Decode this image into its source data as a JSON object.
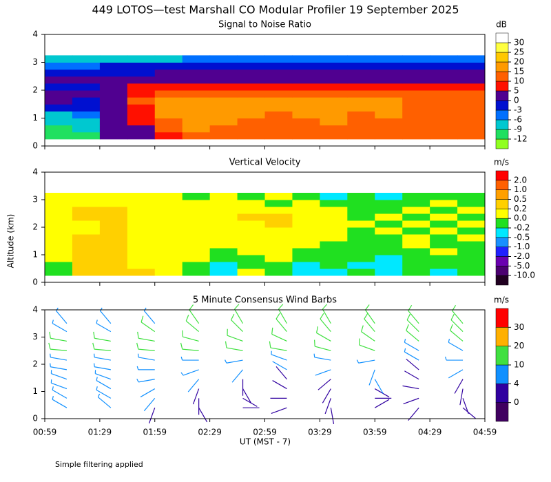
{
  "title": "449 LOTOS—test Marshall CO Modular Profiler 19 September 2025",
  "ylabel": "Altitude (km)",
  "xlabel": "UT  (MST - 7)",
  "footnote": "Simple filtering applied",
  "xticks": [
    "00:59",
    "01:29",
    "01:59",
    "02:29",
    "02:59",
    "03:29",
    "03:59",
    "04:29",
    "04:59"
  ],
  "chart_data": [
    {
      "type": "heatmap",
      "title": "Signal to Noise Ratio",
      "unit": "dB",
      "ylim": [
        0,
        4
      ],
      "yticks": [
        0,
        1,
        2,
        3,
        4
      ],
      "y": [
        0.375,
        0.625,
        0.875,
        1.125,
        1.375,
        1.625,
        1.875,
        2.125,
        2.375,
        2.625,
        2.875,
        3.125
      ],
      "values": [
        [
          -10,
          -10,
          2,
          3,
          8,
          12,
          13,
          12,
          11,
          12,
          13,
          12,
          12,
          11,
          10,
          10
        ],
        [
          -10,
          -9,
          2,
          4,
          12,
          15,
          14,
          13,
          12,
          13,
          14,
          12,
          13,
          12,
          11,
          10
        ],
        [
          -9,
          -9,
          3,
          5,
          14,
          16,
          15,
          14,
          13,
          14,
          15,
          13,
          14,
          13,
          12,
          11
        ],
        [
          -7,
          -6,
          3,
          6,
          15,
          17,
          16,
          15,
          14,
          15,
          16,
          14,
          15,
          14,
          13,
          12
        ],
        [
          -3,
          -3,
          2,
          8,
          16,
          17,
          16,
          16,
          15,
          16,
          16,
          15,
          16,
          14,
          14,
          13
        ],
        [
          0,
          -1,
          2,
          10,
          15,
          16,
          15,
          16,
          15,
          15,
          16,
          15,
          15,
          14,
          14,
          13
        ],
        [
          3,
          3,
          4,
          9,
          12,
          13,
          13,
          13,
          12,
          12,
          13,
          12,
          12,
          12,
          11,
          11
        ],
        [
          -3,
          -3,
          4,
          5,
          7,
          8,
          8,
          8,
          8,
          8,
          8,
          8,
          8,
          7,
          7,
          7
        ],
        [
          3,
          3,
          2,
          3,
          3,
          4,
          3,
          4,
          3,
          3,
          4,
          3,
          3,
          3,
          3,
          3
        ],
        [
          -2,
          -2,
          -2,
          -1,
          0,
          1,
          0,
          1,
          0,
          0,
          1,
          0,
          0,
          0,
          0,
          0
        ],
        [
          -4,
          -4,
          -3,
          -3,
          -3,
          -2,
          -2,
          -2,
          -2,
          -2,
          -2,
          -2,
          -2,
          -2,
          -2,
          -2
        ],
        [
          -8,
          -8,
          -7,
          -7,
          -7,
          -6,
          -6,
          -6,
          -6,
          -6,
          -6,
          -6,
          -6,
          -6,
          -6,
          -6
        ]
      ],
      "colorbar": {
        "ticks": [
          -12,
          -9,
          -6,
          -3,
          0,
          5,
          10,
          15,
          20,
          25,
          30
        ],
        "colors": [
          "#90ff20",
          "#20e060",
          "#00c8d0",
          "#0070ff",
          "#0010d0",
          "#500090",
          "#ff1000",
          "#ff6000",
          "#ff9a00",
          "#ffc800",
          "#ffff40",
          "#ffffff"
        ]
      }
    },
    {
      "type": "heatmap",
      "title": "Vertical Velocity",
      "unit": "m/s",
      "ylim": [
        0,
        4
      ],
      "yticks": [
        0,
        1,
        2,
        3,
        4
      ],
      "y": [
        0.375,
        0.625,
        0.875,
        1.125,
        1.375,
        1.625,
        1.875,
        2.125,
        2.375,
        2.625,
        2.875,
        3.125
      ],
      "values": [
        [
          -0.1,
          0.3,
          0.3,
          0.3,
          0.1,
          -0.1,
          -0.3,
          0.1,
          -0.1,
          -0.3,
          -0.3,
          -0.1,
          -0.3,
          -0.1,
          -0.3,
          -0.1
        ],
        [
          -0.1,
          0.3,
          0.3,
          0.1,
          0.1,
          -0.1,
          -0.3,
          -0.1,
          -0.1,
          -0.3,
          -0.1,
          -0.3,
          -0.3,
          -0.1,
          -0.1,
          -0.1
        ],
        [
          0.1,
          0.3,
          0.3,
          0.1,
          0.1,
          0.1,
          -0.1,
          -0.1,
          0.1,
          -0.1,
          -0.1,
          -0.1,
          -0.3,
          -0.1,
          -0.1,
          -0.1
        ],
        [
          0.1,
          0.3,
          0.3,
          0.1,
          0.1,
          0.1,
          -0.1,
          0.1,
          0.1,
          -0.1,
          -0.1,
          -0.1,
          -0.1,
          -0.1,
          0.1,
          -0.1
        ],
        [
          0.1,
          0.3,
          0.3,
          0.1,
          0.1,
          0.1,
          0.1,
          0.1,
          0.1,
          0.1,
          -0.1,
          -0.1,
          -0.1,
          0.1,
          -0.1,
          -0.1
        ],
        [
          0.1,
          0.3,
          0.3,
          0.1,
          0.1,
          0.1,
          0.1,
          0.1,
          0.1,
          0.1,
          0.1,
          -0.1,
          -0.1,
          0.1,
          -0.1,
          0.1
        ],
        [
          0.1,
          0.1,
          0.3,
          0.1,
          0.1,
          0.1,
          0.1,
          0.1,
          0.1,
          0.1,
          0.1,
          -0.1,
          0.1,
          -0.1,
          0.1,
          -0.1
        ],
        [
          0.1,
          0.1,
          0.3,
          0.1,
          0.1,
          0.1,
          0.1,
          0.1,
          0.3,
          0.1,
          0.1,
          0.1,
          -0.1,
          0.1,
          -0.1,
          0.1
        ],
        [
          0.1,
          0.3,
          0.3,
          0.1,
          0.1,
          0.1,
          0.1,
          0.3,
          0.3,
          0.1,
          0.1,
          -0.1,
          0.1,
          -0.1,
          0.1,
          -0.1
        ],
        [
          0.1,
          0.3,
          0.3,
          0.1,
          0.1,
          0.1,
          0.1,
          0.1,
          0.1,
          0.1,
          0.1,
          -0.1,
          -0.1,
          0.1,
          -0.1,
          0.1
        ],
        [
          0.1,
          0.1,
          0.1,
          0.1,
          0.1,
          0.1,
          0.1,
          0.1,
          -0.1,
          0.1,
          -0.1,
          -0.1,
          -0.1,
          -0.1,
          0.1,
          -0.1
        ],
        [
          0.1,
          0.1,
          0.1,
          0.1,
          0.1,
          -0.1,
          0.1,
          -0.1,
          0.1,
          -0.1,
          -0.3,
          -0.1,
          -0.3,
          -0.1,
          -0.1,
          -0.1
        ]
      ],
      "colorbar": {
        "ticks": [
          {
            "value": -10,
            "label": "-10.0"
          },
          {
            "value": -5,
            "label": "-5.0"
          },
          {
            "value": -2,
            "label": "-2.0"
          },
          {
            "value": -1,
            "label": "-1.0"
          },
          -0.5,
          -0.2,
          {
            "value": 0,
            "label": "0.0"
          },
          0.2,
          0.5,
          {
            "value": 1,
            "label": "1.0"
          },
          {
            "value": 2,
            "label": "2.0"
          }
        ],
        "colors": [
          "#200020",
          "#4b0070",
          "#6a00b0",
          "#2020ff",
          "#1890ff",
          "#00e8ff",
          "#20e020",
          "#ffff00",
          "#ffd000",
          "#ffa000",
          "#ff6000",
          "#ff0000"
        ]
      }
    },
    {
      "type": "barbs",
      "title": "5 Minute Consensus Wind Barbs",
      "unit": "m/s",
      "ylim": [
        0,
        4
      ],
      "yticks": [
        0,
        1,
        2,
        3,
        4
      ],
      "y": [
        0.4,
        0.75,
        1.1,
        1.45,
        1.8,
        2.15,
        2.5,
        2.85,
        3.2,
        3.5
      ],
      "speed": [
        [
          6,
          6,
          3,
          3,
          2,
          3,
          2,
          3,
          2,
          3
        ],
        [
          6,
          6,
          4,
          3,
          3,
          2,
          3,
          2,
          3,
          2
        ],
        [
          7,
          6,
          4,
          3,
          3,
          3,
          2,
          3,
          3,
          3
        ],
        [
          7,
          7,
          5,
          4,
          3,
          3,
          3,
          4,
          3,
          3
        ],
        [
          8,
          8,
          6,
          5,
          4,
          4,
          4,
          4,
          3,
          4
        ],
        [
          9,
          9,
          8,
          7,
          6,
          6,
          8,
          7,
          6,
          6
        ],
        [
          12,
          12,
          12,
          11,
          11,
          11,
          11,
          10,
          8,
          9
        ],
        [
          11,
          11,
          12,
          12,
          12,
          12,
          12,
          11,
          11,
          11
        ],
        [
          8,
          9,
          10,
          11,
          12,
          12,
          13,
          12,
          12,
          11
        ],
        [
          6,
          7,
          8,
          10,
          10,
          11,
          12,
          11,
          10,
          10
        ]
      ],
      "direction": [
        [
          300,
          310,
          200,
          150,
          90,
          250,
          170,
          60,
          220,
          130
        ],
        [
          300,
          300,
          220,
          180,
          120,
          270,
          200,
          90,
          250,
          160
        ],
        [
          290,
          300,
          240,
          200,
          150,
          300,
          210,
          120,
          280,
          190
        ],
        [
          290,
          290,
          260,
          220,
          180,
          320,
          230,
          150,
          300,
          210
        ],
        [
          280,
          280,
          270,
          250,
          220,
          300,
          250,
          200,
          310,
          240
        ],
        [
          280,
          280,
          280,
          270,
          260,
          290,
          280,
          260,
          300,
          270
        ],
        [
          275,
          275,
          275,
          275,
          280,
          280,
          285,
          290,
          300,
          300
        ],
        [
          280,
          280,
          280,
          285,
          290,
          295,
          300,
          305,
          310,
          310
        ],
        [
          300,
          300,
          305,
          310,
          315,
          320,
          320,
          320,
          315,
          315
        ],
        [
          320,
          320,
          320,
          325,
          330,
          330,
          330,
          325,
          320,
          320
        ]
      ],
      "colorbar": {
        "ticks": [
          0,
          4,
          10,
          20,
          30
        ],
        "colors": [
          "#400060",
          "#3000a0",
          "#1090ff",
          "#40e040",
          "#ffb000",
          "#ff0000"
        ]
      }
    }
  ]
}
